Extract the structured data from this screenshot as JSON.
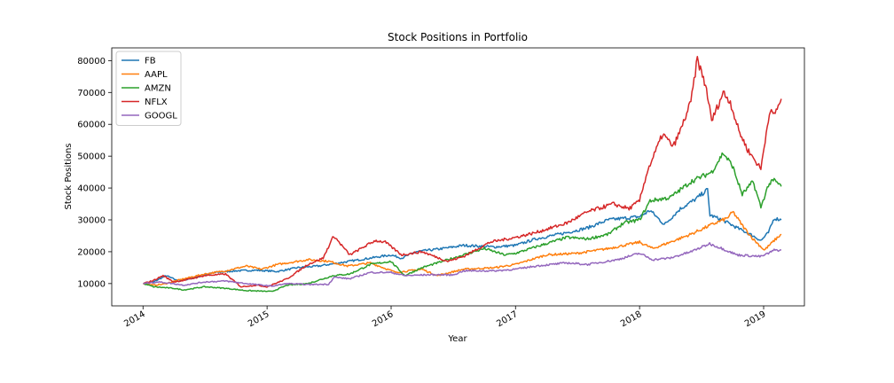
{
  "chart_data": {
    "type": "line",
    "title": "Stock Positions in Portfolio",
    "xlabel": "Year",
    "ylabel": "Stock Positions",
    "xlim": [
      "2013-10-01",
      "2019-05-01"
    ],
    "ylim": [
      3000,
      84000
    ],
    "xticks": [
      {
        "date": "2014-01-01",
        "label": "2014"
      },
      {
        "date": "2015-01-01",
        "label": "2015"
      },
      {
        "date": "2016-01-01",
        "label": "2016"
      },
      {
        "date": "2017-01-01",
        "label": "2017"
      },
      {
        "date": "2018-01-01",
        "label": "2018"
      },
      {
        "date": "2019-01-01",
        "label": "2019"
      }
    ],
    "yticks": [
      10000,
      20000,
      30000,
      40000,
      50000,
      60000,
      70000,
      80000
    ],
    "grid": false,
    "legend_position": "top-left",
    "series": [
      {
        "name": "FB",
        "color": "#1f77b4",
        "points": [
          [
            "2014-01-02",
            10000
          ],
          [
            "2014-02-01",
            10500
          ],
          [
            "2014-03-10",
            12500
          ],
          [
            "2014-04-15",
            10800
          ],
          [
            "2014-06-01",
            11800
          ],
          [
            "2014-08-01",
            13500
          ],
          [
            "2014-10-01",
            14000
          ],
          [
            "2014-12-01",
            14200
          ],
          [
            "2015-02-01",
            13800
          ],
          [
            "2015-04-01",
            15000
          ],
          [
            "2015-06-01",
            15500
          ],
          [
            "2015-08-01",
            16500
          ],
          [
            "2015-10-01",
            17500
          ],
          [
            "2015-12-31",
            19000
          ],
          [
            "2016-02-01",
            18000
          ],
          [
            "2016-03-15",
            20000
          ],
          [
            "2016-06-01",
            21000
          ],
          [
            "2016-08-01",
            22000
          ],
          [
            "2016-11-01",
            21500
          ],
          [
            "2017-01-01",
            22000
          ],
          [
            "2017-03-01",
            24000
          ],
          [
            "2017-06-01",
            26000
          ],
          [
            "2017-08-01",
            27500
          ],
          [
            "2017-10-01",
            30000
          ],
          [
            "2018-01-01",
            31000
          ],
          [
            "2018-02-01",
            33000
          ],
          [
            "2018-03-15",
            28500
          ],
          [
            "2018-05-01",
            33500
          ],
          [
            "2018-06-15",
            36500
          ],
          [
            "2018-07-20",
            39500
          ],
          [
            "2018-07-27",
            31500
          ],
          [
            "2018-09-01",
            30000
          ],
          [
            "2018-10-15",
            27500
          ],
          [
            "2018-12-01",
            25000
          ],
          [
            "2018-12-24",
            23500
          ],
          [
            "2019-01-15",
            26000
          ],
          [
            "2019-02-01",
            30500
          ],
          [
            "2019-02-22",
            30000
          ]
        ]
      },
      {
        "name": "AAPL",
        "color": "#ff7f0e",
        "points": [
          [
            "2014-01-02",
            10000
          ],
          [
            "2014-02-01",
            9500
          ],
          [
            "2014-03-01",
            9800
          ],
          [
            "2014-05-01",
            11500
          ],
          [
            "2014-07-01",
            13000
          ],
          [
            "2014-09-01",
            14000
          ],
          [
            "2014-11-01",
            15500
          ],
          [
            "2014-12-15",
            14500
          ],
          [
            "2015-02-01",
            16000
          ],
          [
            "2015-05-01",
            17500
          ],
          [
            "2015-07-01",
            17000
          ],
          [
            "2015-08-25",
            15500
          ],
          [
            "2015-11-01",
            16500
          ],
          [
            "2016-01-15",
            13500
          ],
          [
            "2016-04-01",
            14500
          ],
          [
            "2016-05-15",
            12500
          ],
          [
            "2016-08-01",
            14500
          ],
          [
            "2016-11-01",
            15000
          ],
          [
            "2017-01-01",
            16000
          ],
          [
            "2017-04-01",
            19000
          ],
          [
            "2017-07-01",
            19500
          ],
          [
            "2017-10-01",
            21000
          ],
          [
            "2018-01-01",
            23000
          ],
          [
            "2018-02-09",
            21000
          ],
          [
            "2018-04-01",
            23000
          ],
          [
            "2018-06-01",
            25500
          ],
          [
            "2018-08-01",
            28500
          ],
          [
            "2018-09-15",
            30500
          ],
          [
            "2018-10-03",
            32500
          ],
          [
            "2018-11-01",
            28000
          ],
          [
            "2018-12-01",
            24000
          ],
          [
            "2019-01-03",
            20500
          ],
          [
            "2019-02-01",
            23500
          ],
          [
            "2019-02-22",
            25500
          ]
        ]
      },
      {
        "name": "AMZN",
        "color": "#2ca02c",
        "points": [
          [
            "2014-01-02",
            10000
          ],
          [
            "2014-02-01",
            9000
          ],
          [
            "2014-04-01",
            8500
          ],
          [
            "2014-05-01",
            8000
          ],
          [
            "2014-07-01",
            9000
          ],
          [
            "2014-09-01",
            8500
          ],
          [
            "2014-11-01",
            7800
          ],
          [
            "2015-01-15",
            7500
          ],
          [
            "2015-03-01",
            9500
          ],
          [
            "2015-05-01",
            10000
          ],
          [
            "2015-07-15",
            12500
          ],
          [
            "2015-09-01",
            13000
          ],
          [
            "2015-11-01",
            16000
          ],
          [
            "2015-12-31",
            17000
          ],
          [
            "2016-02-10",
            12500
          ],
          [
            "2016-04-01",
            15000
          ],
          [
            "2016-07-01",
            18000
          ],
          [
            "2016-10-01",
            21000
          ],
          [
            "2016-12-01",
            19000
          ],
          [
            "2017-01-01",
            19500
          ],
          [
            "2017-03-01",
            21500
          ],
          [
            "2017-06-01",
            24500
          ],
          [
            "2017-08-01",
            24000
          ],
          [
            "2017-10-01",
            25500
          ],
          [
            "2017-11-15",
            29000
          ],
          [
            "2018-01-01",
            30000
          ],
          [
            "2018-02-01",
            36000
          ],
          [
            "2018-04-01",
            37000
          ],
          [
            "2018-06-01",
            42000
          ],
          [
            "2018-08-01",
            45000
          ],
          [
            "2018-09-04",
            51000
          ],
          [
            "2018-10-01",
            47000
          ],
          [
            "2018-10-30",
            38000
          ],
          [
            "2018-12-01",
            42000
          ],
          [
            "2018-12-24",
            34000
          ],
          [
            "2019-01-15",
            41000
          ],
          [
            "2019-02-01",
            42500
          ],
          [
            "2019-02-22",
            40500
          ]
        ]
      },
      {
        "name": "NFLX",
        "color": "#d62728",
        "points": [
          [
            "2014-01-02",
            10000
          ],
          [
            "2014-02-01",
            11000
          ],
          [
            "2014-03-01",
            12500
          ],
          [
            "2014-04-01",
            10500
          ],
          [
            "2014-05-01",
            11000
          ],
          [
            "2014-07-01",
            12500
          ],
          [
            "2014-09-01",
            13000
          ],
          [
            "2014-10-16",
            9000
          ],
          [
            "2014-12-01",
            9500
          ],
          [
            "2015-01-01",
            9000
          ],
          [
            "2015-03-01",
            11500
          ],
          [
            "2015-05-01",
            16000
          ],
          [
            "2015-06-15",
            18000
          ],
          [
            "2015-07-16",
            25000
          ],
          [
            "2015-09-01",
            19000
          ],
          [
            "2015-11-15",
            23500
          ],
          [
            "2015-12-15",
            23000
          ],
          [
            "2016-02-01",
            19000
          ],
          [
            "2016-04-01",
            20000
          ],
          [
            "2016-06-15",
            17000
          ],
          [
            "2016-08-01",
            18500
          ],
          [
            "2016-10-18",
            23000
          ],
          [
            "2017-01-01",
            24500
          ],
          [
            "2017-03-01",
            26000
          ],
          [
            "2017-06-01",
            29000
          ],
          [
            "2017-08-01",
            32500
          ],
          [
            "2017-10-15",
            35000
          ],
          [
            "2017-12-01",
            33500
          ],
          [
            "2018-01-01",
            36000
          ],
          [
            "2018-01-23",
            45000
          ],
          [
            "2018-03-10",
            57000
          ],
          [
            "2018-04-10",
            53000
          ],
          [
            "2018-05-01",
            58000
          ],
          [
            "2018-06-01",
            67000
          ],
          [
            "2018-06-20",
            80500
          ],
          [
            "2018-07-17",
            71000
          ],
          [
            "2018-08-01",
            61000
          ],
          [
            "2018-09-04",
            70000
          ],
          [
            "2018-09-25",
            67000
          ],
          [
            "2018-10-20",
            58000
          ],
          [
            "2018-11-15",
            52000
          ],
          [
            "2018-12-24",
            46000
          ],
          [
            "2019-01-18",
            64000
          ],
          [
            "2019-02-01",
            63000
          ],
          [
            "2019-02-22",
            68000
          ]
        ]
      },
      {
        "name": "GOOGL",
        "color": "#9467bd",
        "points": [
          [
            "2014-01-02",
            10000
          ],
          [
            "2014-02-15",
            10500
          ],
          [
            "2014-03-15",
            10200
          ],
          [
            "2014-05-01",
            9500
          ],
          [
            "2014-07-01",
            10500
          ],
          [
            "2014-09-01",
            10800
          ],
          [
            "2014-11-01",
            10000
          ],
          [
            "2015-01-15",
            9200
          ],
          [
            "2015-03-01",
            10000
          ],
          [
            "2015-05-01",
            9700
          ],
          [
            "2015-07-01",
            9800
          ],
          [
            "2015-07-17",
            12000
          ],
          [
            "2015-09-01",
            11500
          ],
          [
            "2015-11-01",
            13500
          ],
          [
            "2016-01-01",
            13500
          ],
          [
            "2016-02-10",
            12500
          ],
          [
            "2016-05-01",
            12800
          ],
          [
            "2016-07-01",
            12700
          ],
          [
            "2016-08-01",
            14000
          ],
          [
            "2016-11-01",
            14000
          ],
          [
            "2017-01-01",
            14500
          ],
          [
            "2017-03-01",
            15500
          ],
          [
            "2017-06-01",
            16500
          ],
          [
            "2017-08-01",
            16000
          ],
          [
            "2017-10-27",
            17500
          ],
          [
            "2018-01-01",
            19500
          ],
          [
            "2018-02-09",
            17500
          ],
          [
            "2018-04-01",
            18000
          ],
          [
            "2018-06-01",
            20000
          ],
          [
            "2018-07-26",
            22500
          ],
          [
            "2018-09-01",
            21000
          ],
          [
            "2018-10-15",
            19000
          ],
          [
            "2018-12-24",
            18500
          ],
          [
            "2019-01-15",
            19500
          ],
          [
            "2019-02-01",
            20500
          ],
          [
            "2019-02-22",
            20500
          ]
        ]
      }
    ]
  }
}
